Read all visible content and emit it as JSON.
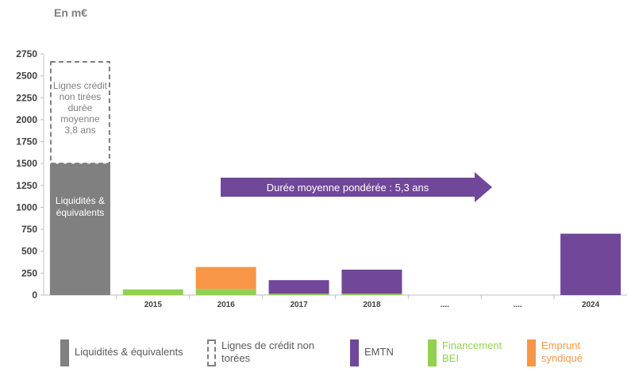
{
  "unit_label": "En m€",
  "colors": {
    "liquidites": "#808080",
    "lignes": "#7f7f7f",
    "emtn": "#71479a",
    "bei": "#92d050",
    "emprunt": "#f79646",
    "arrow": "#71479a",
    "axis": "#bfbfbf",
    "tick_text": "#404040"
  },
  "chart_data": {
    "type": "bar",
    "stacked": true,
    "ylim": [
      0,
      2750
    ],
    "yticks": [
      0,
      250,
      500,
      750,
      1000,
      1250,
      1500,
      1750,
      2000,
      2250,
      2500,
      2750
    ],
    "categories": [
      "",
      "2015",
      "2016",
      "2017",
      "2018",
      "....",
      "....",
      "2024"
    ],
    "series": [
      {
        "name": "Liquidités & équivalents",
        "key": "liquidites",
        "values": [
          1500,
          0,
          0,
          0,
          0,
          0,
          0,
          0
        ]
      },
      {
        "name": "Lignes de crédit non torées",
        "key": "lignes",
        "dashed": true,
        "values": [
          1160,
          0,
          0,
          0,
          0,
          0,
          0,
          0
        ]
      },
      {
        "name": "Financement BEI",
        "key": "bei",
        "values": [
          0,
          65,
          70,
          15,
          15,
          0,
          0,
          0
        ]
      },
      {
        "name": "Emprunt syndiqué",
        "key": "emprunt",
        "values": [
          0,
          0,
          250,
          0,
          0,
          0,
          0,
          0
        ]
      },
      {
        "name": "EMTN",
        "key": "emtn",
        "values": [
          0,
          0,
          0,
          155,
          275,
          0,
          0,
          700
        ]
      }
    ],
    "bar_labels": {
      "liquidites": "Liquidités & équivalents",
      "lignes": "Lignes crédit non tirées durée moyenne 3,8 ans"
    },
    "annotation": "Durée moyenne pondérée : 5,3 ans",
    "grid": false
  },
  "legend": {
    "liquidites": "Liquidités & équivalents",
    "lignes": "Lignes de crédit non torées",
    "emtn": "EMTN",
    "bei": "Financement BEI",
    "emprunt": "Emprunt syndiqué"
  }
}
